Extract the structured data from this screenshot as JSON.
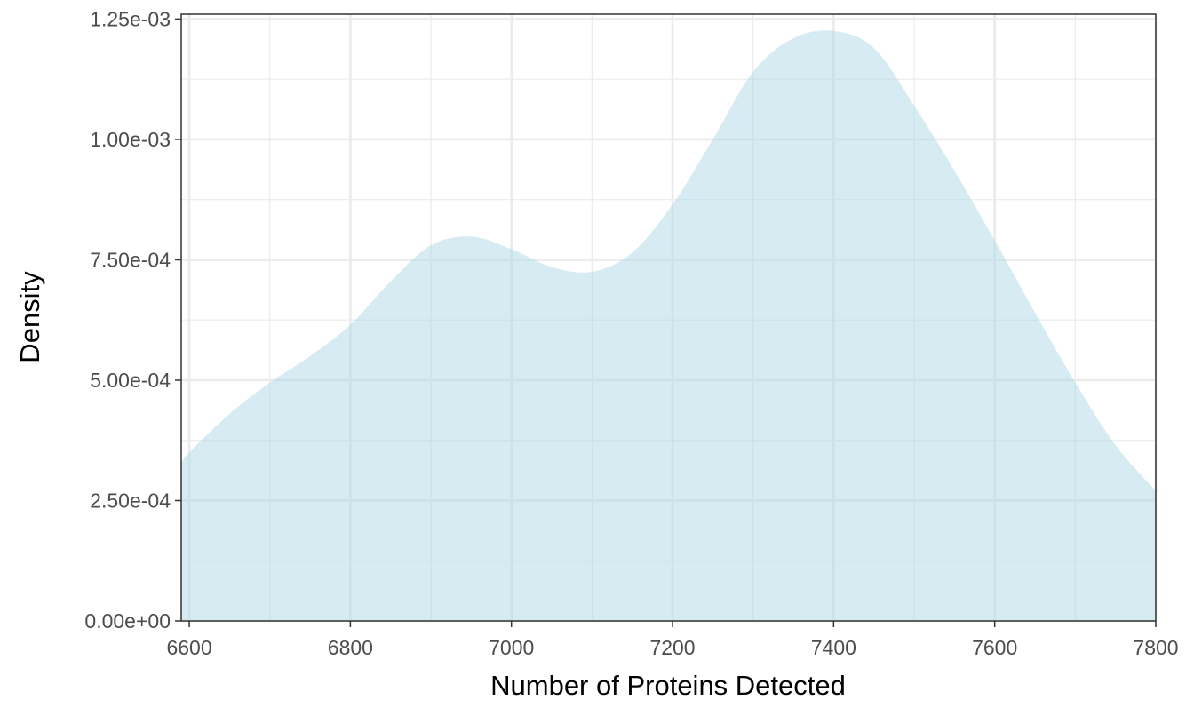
{
  "chart_data": {
    "type": "area",
    "xlabel": "Number of Proteins Detected",
    "ylabel": "Density",
    "xlim": [
      6590,
      7800
    ],
    "ylim": [
      0,
      0.00126
    ],
    "x_ticks": [
      6600,
      6800,
      7000,
      7200,
      7400,
      7600,
      7800
    ],
    "x_tick_labels": [
      "6600",
      "6800",
      "7000",
      "7200",
      "7400",
      "7600",
      "7800"
    ],
    "y_ticks": [
      0,
      0.00025,
      0.0005,
      0.00075,
      0.001,
      0.00125
    ],
    "y_tick_labels": [
      "0.00e+00",
      "2.50e-04",
      "5.00e-04",
      "7.50e-04",
      "1.00e-03",
      "1.25e-03"
    ],
    "grid": true,
    "legend": "none",
    "fill_color": "#add8e6",
    "fill_opacity": 0.5,
    "series": [
      {
        "x": [
          6590,
          6600,
          6650,
          6700,
          6750,
          6800,
          6850,
          6900,
          6950,
          7000,
          7050,
          7100,
          7150,
          7200,
          7250,
          7300,
          7350,
          7400,
          7450,
          7500,
          7550,
          7600,
          7650,
          7700,
          7750,
          7800
        ],
        "y": [
          0.000328,
          0.00035,
          0.00043,
          0.000495,
          0.00055,
          0.000615,
          0.000705,
          0.00078,
          0.000798,
          0.000772,
          0.000735,
          0.000725,
          0.000765,
          0.000865,
          0.001,
          0.00114,
          0.00121,
          0.001225,
          0.00119,
          0.00107,
          0.000935,
          0.00079,
          0.00064,
          0.000495,
          0.000365,
          0.00027
        ]
      }
    ]
  }
}
